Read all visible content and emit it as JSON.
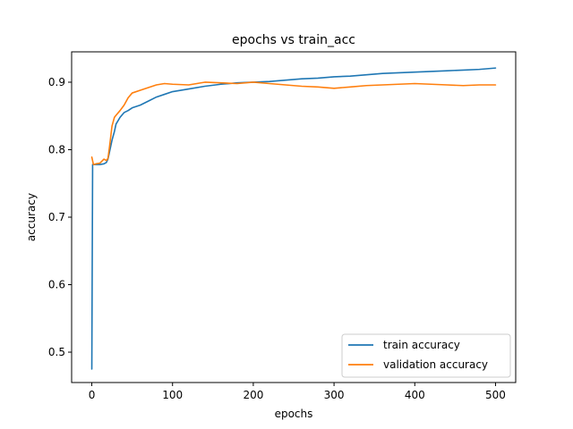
{
  "chart_data": {
    "type": "line",
    "title": "epochs vs train_acc",
    "xlabel": "epochs",
    "ylabel": "accuracy",
    "xlim": [
      -25,
      525
    ],
    "ylim": [
      0.455,
      0.945
    ],
    "xticks": [
      0,
      100,
      200,
      300,
      400,
      500
    ],
    "yticks": [
      0.5,
      0.6,
      0.7,
      0.8,
      0.9
    ],
    "grid": false,
    "legend_position": "lower-right",
    "series": [
      {
        "name": "train accuracy",
        "color": "#1f77b4",
        "x": [
          0,
          1,
          2,
          5,
          10,
          15,
          18,
          20,
          22,
          25,
          28,
          30,
          35,
          40,
          45,
          50,
          60,
          70,
          80,
          90,
          100,
          120,
          140,
          160,
          180,
          200,
          220,
          240,
          260,
          280,
          300,
          320,
          340,
          360,
          380,
          400,
          420,
          440,
          460,
          480,
          500
        ],
        "values": [
          0.475,
          0.778,
          0.778,
          0.778,
          0.778,
          0.779,
          0.781,
          0.786,
          0.797,
          0.814,
          0.827,
          0.838,
          0.848,
          0.855,
          0.858,
          0.862,
          0.866,
          0.872,
          0.878,
          0.882,
          0.886,
          0.89,
          0.894,
          0.897,
          0.899,
          0.9,
          0.901,
          0.903,
          0.905,
          0.906,
          0.908,
          0.909,
          0.911,
          0.913,
          0.914,
          0.915,
          0.916,
          0.917,
          0.918,
          0.919,
          0.921
        ]
      },
      {
        "name": "validation accuracy",
        "color": "#ff7f0e",
        "x": [
          0,
          2,
          5,
          10,
          15,
          18,
          20,
          22,
          25,
          28,
          30,
          35,
          40,
          45,
          50,
          60,
          70,
          80,
          90,
          100,
          120,
          140,
          160,
          180,
          200,
          220,
          240,
          260,
          280,
          300,
          320,
          340,
          360,
          380,
          400,
          420,
          440,
          460,
          480,
          500
        ],
        "values": [
          0.789,
          0.778,
          0.779,
          0.78,
          0.786,
          0.784,
          0.787,
          0.805,
          0.835,
          0.848,
          0.851,
          0.858,
          0.866,
          0.877,
          0.884,
          0.888,
          0.892,
          0.896,
          0.898,
          0.897,
          0.896,
          0.9,
          0.899,
          0.898,
          0.9,
          0.898,
          0.896,
          0.894,
          0.893,
          0.891,
          0.893,
          0.895,
          0.896,
          0.897,
          0.898,
          0.897,
          0.896,
          0.895,
          0.896,
          0.896
        ]
      }
    ]
  }
}
